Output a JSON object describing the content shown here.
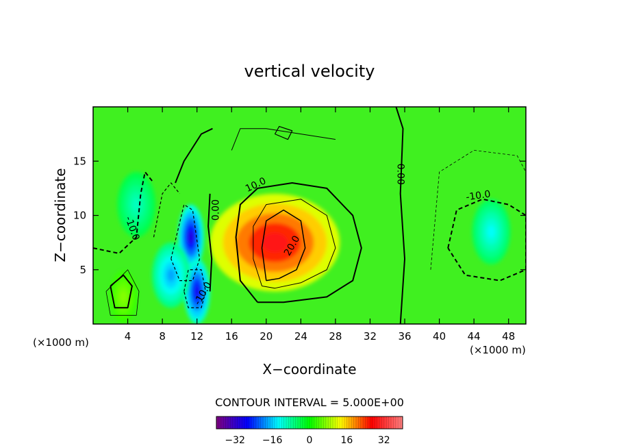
{
  "chart_data": {
    "type": "heatmap",
    "title": "vertical velocity",
    "xlabel": "X−coordinate",
    "ylabel": "Z−coordinate",
    "x_unit_left": "(×1000 m)",
    "x_unit_right": "(×1000 m)",
    "xlim": [
      0,
      50
    ],
    "ylim": [
      0,
      20
    ],
    "x_ticks": [
      4,
      8,
      12,
      16,
      20,
      24,
      28,
      32,
      36,
      40,
      44,
      48
    ],
    "y_ticks": [
      5,
      10,
      15
    ],
    "grid": false,
    "contour_interval_text": "CONTOUR INTERVAL = 5.000E+00",
    "contour_labels": [
      {
        "text": "10.0",
        "x": 18.8,
        "z": 12.8,
        "angle": -25
      },
      {
        "text": "20.0",
        "x": 23.0,
        "z": 7.2,
        "angle": -60
      },
      {
        "text": "0.00",
        "x": 35.5,
        "z": 13.8,
        "angle": 90
      },
      {
        "text": "0.00",
        "x": 14.2,
        "z": 10.5,
        "angle": -90
      },
      {
        "text": "-10.0",
        "x": 44.5,
        "z": 11.8,
        "angle": -8
      },
      {
        "text": "-10.0",
        "x": 4.5,
        "z": 8.8,
        "angle": 70
      },
      {
        "text": "-10.0",
        "x": 12.7,
        "z": 2.8,
        "angle": -60
      }
    ],
    "features": [
      {
        "kind": "updraft-max",
        "x": 21.0,
        "z": 7.5,
        "value": 29
      },
      {
        "kind": "updraft",
        "x": 3.5,
        "z": 2.5,
        "value": 7
      },
      {
        "kind": "downdraft-min",
        "x": 11.3,
        "z": 8.0,
        "value": -30
      },
      {
        "kind": "downdraft-min",
        "x": 12.0,
        "z": 3.0,
        "value": -28
      },
      {
        "kind": "downdraft",
        "x": 9.0,
        "z": 4.5,
        "value": -18
      },
      {
        "kind": "downdraft",
        "x": 46.0,
        "z": 8.5,
        "value": -13
      },
      {
        "kind": "downdraft",
        "x": 5.0,
        "z": 11.0,
        "value": -10
      }
    ],
    "colorbar": {
      "range": [
        -40,
        40
      ],
      "tick_values": [
        -32,
        -16,
        0,
        16,
        32
      ],
      "tick_labels": [
        "−32",
        "−16",
        "0",
        "16",
        "32"
      ],
      "colors": [
        "#800080",
        "#0000ff",
        "#00ffff",
        "#00ff00",
        "#ffff00",
        "#ff0000",
        "#ff8080"
      ]
    }
  }
}
